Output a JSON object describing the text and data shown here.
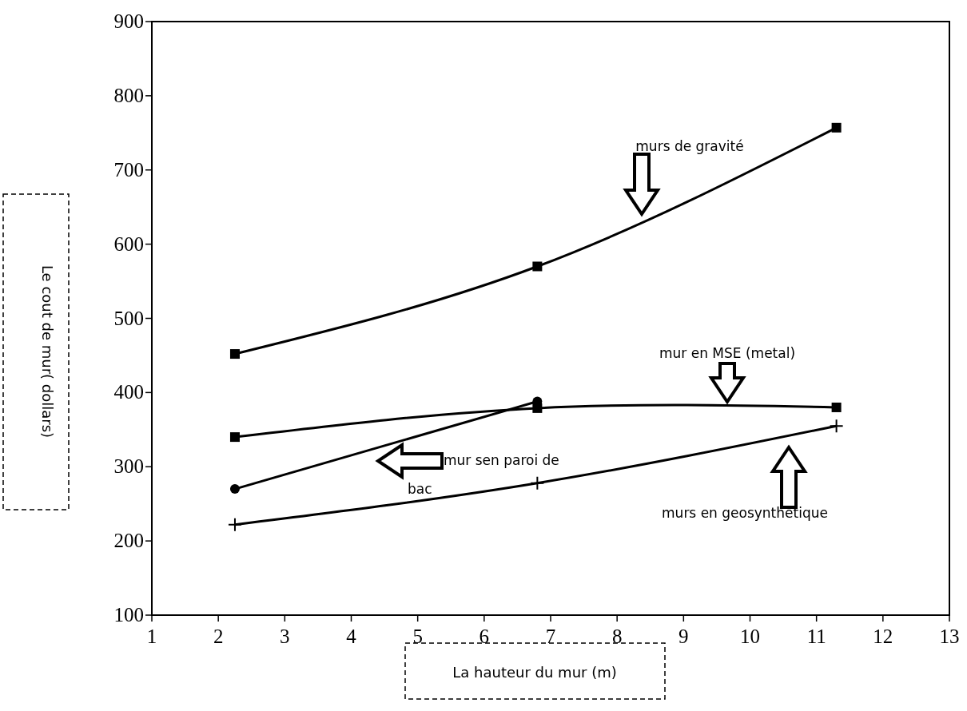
{
  "chart_data": {
    "type": "line",
    "xlabel": "La hauteur du mur (m)",
    "ylabel": "Le cout de mur( dollars)",
    "xlim": [
      1,
      13
    ],
    "xticks": [
      1,
      2,
      3,
      4,
      5,
      6,
      7,
      8,
      9,
      10,
      11,
      12,
      13
    ],
    "ylim": [
      100,
      900
    ],
    "yticks": [
      100,
      200,
      300,
      400,
      500,
      600,
      700,
      800,
      900
    ],
    "grid": false,
    "line_style": "solid",
    "series": [
      {
        "color": "#000000",
        "marker": "square",
        "x": [
          2.25,
          6.8,
          11.3
        ],
        "values": [
          452,
          570,
          757
        ]
      },
      {
        "color": "#000000",
        "marker": "square",
        "x": [
          2.25,
          6.8,
          11.3
        ],
        "values": [
          340,
          379,
          380
        ]
      },
      {
        "color": "#000000",
        "marker": "circle",
        "x": [
          2.25,
          6.8
        ],
        "values": [
          270,
          388
        ]
      },
      {
        "color": "#000000",
        "marker": "cross",
        "x": [
          2.25,
          6.8,
          11.3
        ],
        "values": [
          222,
          278,
          355
        ]
      }
    ],
    "annotations": [
      "murs de gravité",
      "mur en MSE  (metal)",
      "mur sen paroi de bac",
      "murs en geosynthetique"
    ]
  }
}
